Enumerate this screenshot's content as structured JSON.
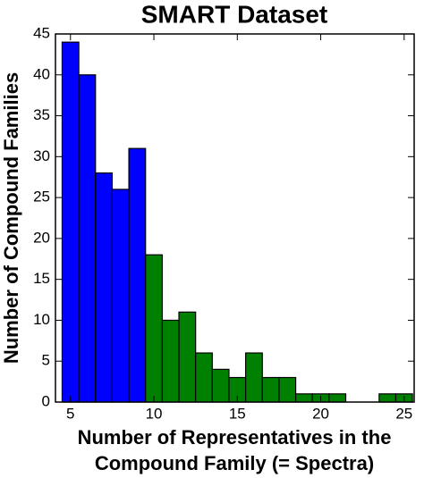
{
  "chart_data": {
    "type": "histogram",
    "title": "SMART Dataset",
    "xlabel": [
      "Number of Representatives in the",
      "Compound Family (= Spectra)"
    ],
    "ylabel": "Number of Compound Families",
    "series": [
      {
        "color": "#0000ff",
        "bins": [
          4.5,
          5.5,
          6.5,
          7.5,
          8.5,
          9.5
        ],
        "values": [
          44,
          40,
          28,
          26,
          31
        ]
      },
      {
        "color": "#008000",
        "bins": [
          9.5,
          10.5,
          11.5,
          12.5,
          13.5,
          14.5,
          15.5,
          16.5,
          17.5,
          18.5,
          19.5,
          20.5,
          21.5,
          22.5,
          23.5,
          24.5,
          25.5
        ],
        "values": [
          18,
          10,
          11,
          6,
          4,
          3,
          6,
          3,
          3,
          1,
          1,
          1,
          0,
          0,
          1,
          1
        ]
      }
    ],
    "xlim": [
      4.1,
      25.6
    ],
    "xticks": [
      5,
      10,
      15,
      20,
      25
    ],
    "ylim": [
      0,
      45
    ],
    "yticks": [
      0,
      5,
      10,
      15,
      20,
      25,
      30,
      35,
      40,
      45
    ],
    "grid": false
  }
}
